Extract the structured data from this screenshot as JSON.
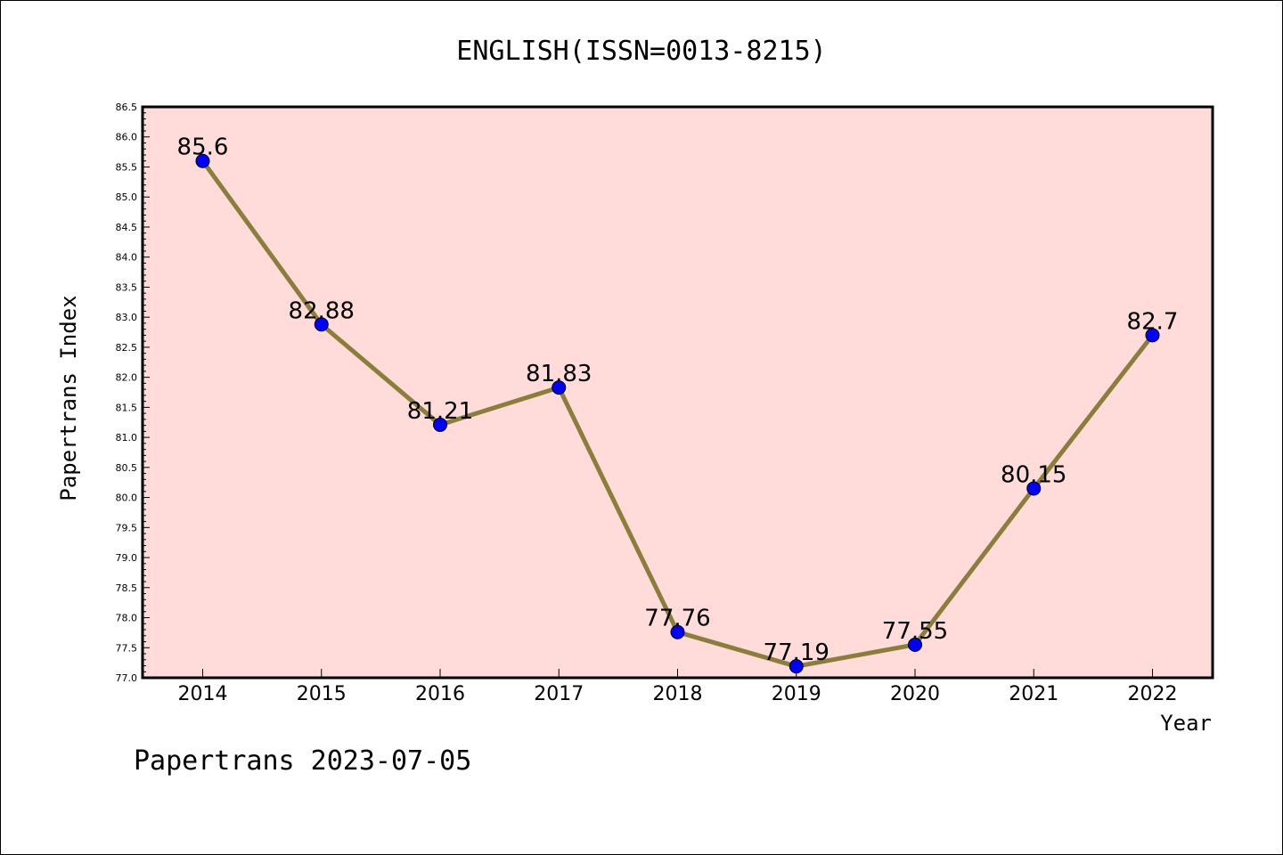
{
  "chart_data": {
    "type": "line",
    "title": "ENGLISH(ISSN=0013-8215)",
    "xlabel": "Year",
    "ylabel": "Papertrans Index",
    "categories": [
      "2014",
      "2015",
      "2016",
      "2017",
      "2018",
      "2019",
      "2020",
      "2021",
      "2022"
    ],
    "values": [
      85.6,
      82.88,
      81.21,
      81.83,
      77.76,
      77.19,
      77.55,
      80.15,
      82.7
    ],
    "data_labels": [
      "85.6",
      "82.88",
      "81.21",
      "81.83",
      "77.76",
      "77.19",
      "77.55",
      "80.15",
      "82.7"
    ],
    "ylim": [
      77.0,
      86.5
    ],
    "yticks": [
      "77.0",
      "77.5",
      "78.0",
      "78.5",
      "79.0",
      "79.5",
      "80.0",
      "80.5",
      "81.0",
      "81.5",
      "82.0",
      "82.5",
      "83.0",
      "83.5",
      "84.0",
      "84.5",
      "85.0",
      "85.5",
      "86.0",
      "86.5"
    ],
    "grid": false,
    "colors": {
      "plot_bg": "#ffdcda",
      "line": "#8b7d3a",
      "marker": "#0000ff"
    }
  },
  "footer": "Papertrans 2023-07-05"
}
